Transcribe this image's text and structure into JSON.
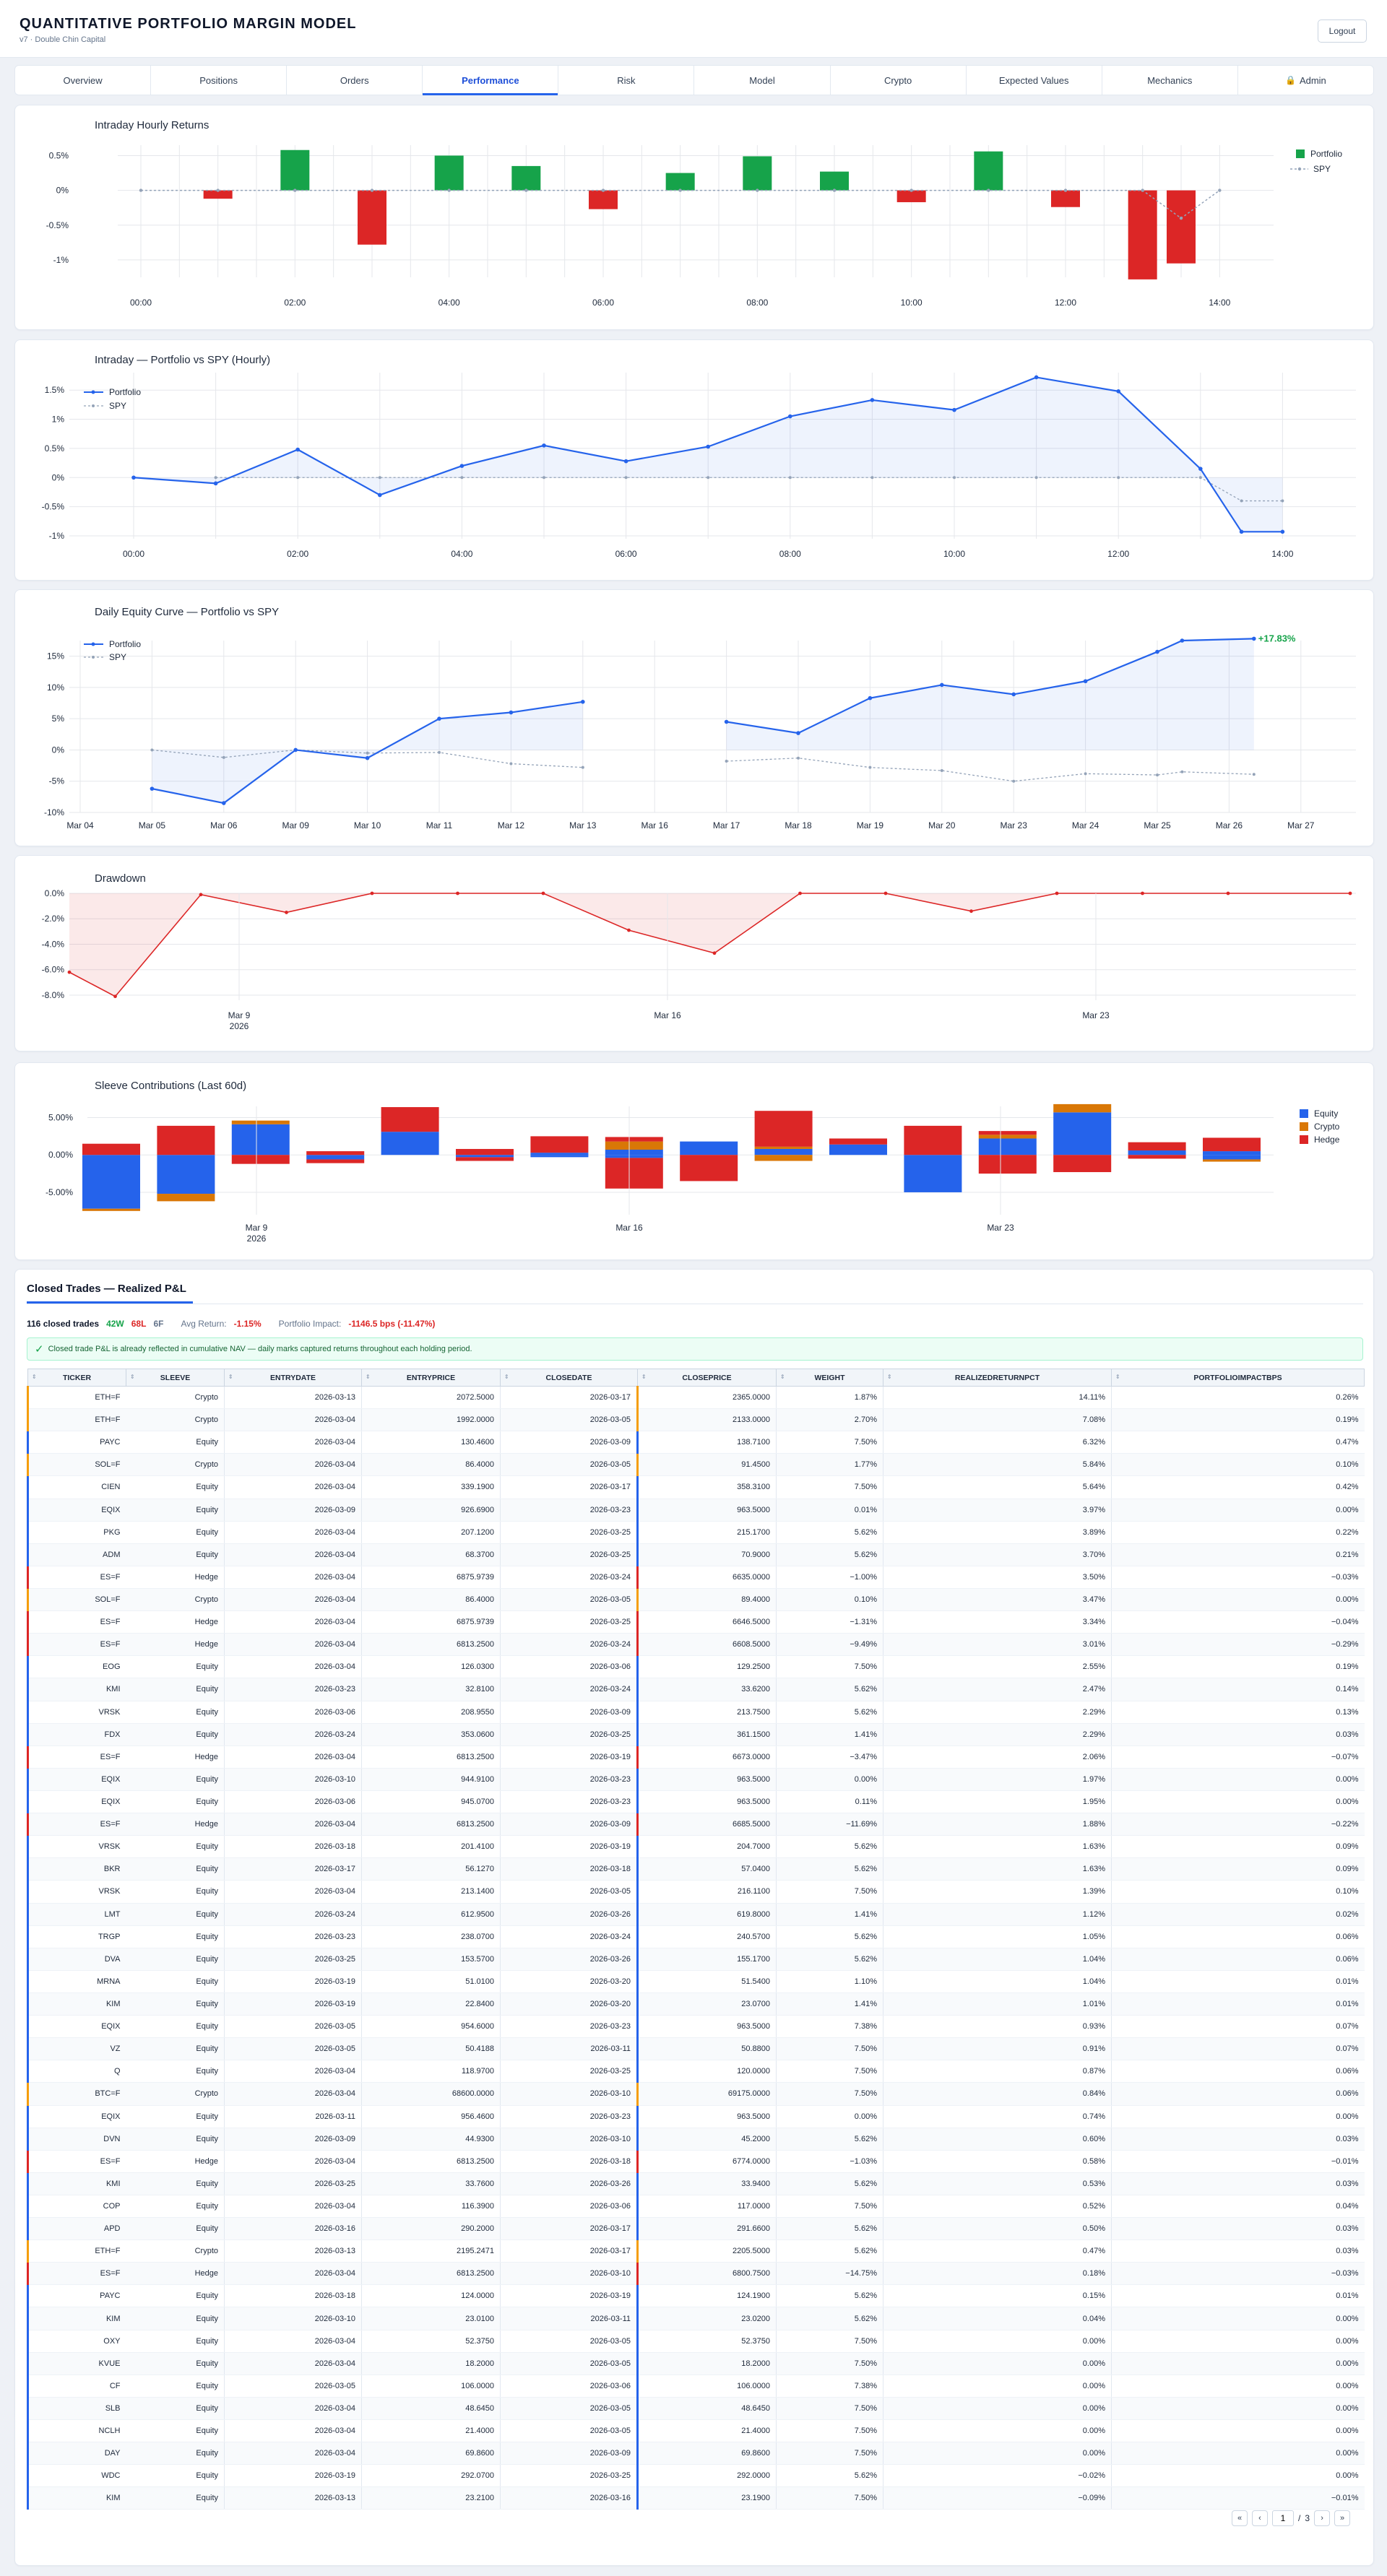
{
  "app": {
    "title": "QUANTITATIVE PORTFOLIO MARGIN MODEL",
    "subtitle": "v7 · Double Chin Capital",
    "logout": "Logout"
  },
  "tabs": [
    {
      "label": "Overview",
      "active": false
    },
    {
      "label": "Positions",
      "active": false
    },
    {
      "label": "Orders",
      "active": false
    },
    {
      "label": "Performance",
      "active": true
    },
    {
      "label": "Risk",
      "active": false
    },
    {
      "label": "Model",
      "active": false
    },
    {
      "label": "Crypto",
      "active": false
    },
    {
      "label": "Expected Values",
      "active": false
    },
    {
      "label": "Mechanics",
      "active": false
    },
    {
      "label": "Admin",
      "active": false,
      "icon": "lock-icon"
    }
  ],
  "colors": {
    "positive": "#16a34a",
    "negative": "#dc2626",
    "portfolio": "#2563eb",
    "spy": "#94a3b8",
    "equity": "#2563eb",
    "crypto": "#d97706",
    "hedge": "#dc2626"
  },
  "chart_data": [
    {
      "id": "intraday-returns",
      "type": "bar",
      "title": "Intraday Hourly Returns",
      "x_ticks": [
        "00:00",
        "02:00",
        "04:00",
        "06:00",
        "08:00",
        "10:00",
        "12:00",
        "14:00"
      ],
      "y_ticks": [
        "0.5%",
        "0%",
        "-0.5%",
        "-1%"
      ],
      "ylim": [
        -1.25,
        0.65
      ],
      "x": [
        0,
        0.5,
        1,
        1.5,
        2,
        2.5,
        3,
        3.5,
        4,
        4.5,
        5,
        5.5,
        6,
        6.5,
        7,
        7.5,
        8,
        8.5,
        9,
        9.5,
        10,
        10.5,
        11,
        11.5,
        12,
        12.5,
        13,
        13.5,
        14
      ],
      "series": [
        {
          "name": "Portfolio",
          "kind": "bar",
          "x": [
            1,
            2,
            3,
            4,
            5,
            6,
            7,
            8,
            9,
            10,
            11,
            12,
            13,
            13.5
          ],
          "values": [
            -0.12,
            0.58,
            -0.78,
            0.5,
            0.35,
            -0.27,
            0.25,
            0.49,
            0.27,
            -0.17,
            0.56,
            -0.24,
            -1.28,
            -1.05
          ]
        },
        {
          "name": "SPY",
          "kind": "line",
          "x": [
            0,
            1,
            2,
            3,
            4,
            5,
            6,
            7,
            8,
            9,
            10,
            11,
            12,
            13,
            13.5,
            14
          ],
          "values": [
            0,
            0,
            0,
            0,
            0,
            0,
            0,
            0,
            0,
            0,
            0,
            0,
            0,
            0,
            -0.4,
            0
          ]
        }
      ],
      "legend": "top-right"
    },
    {
      "id": "intraday-vs-spy",
      "type": "line",
      "title": "Intraday — Portfolio vs SPY (Hourly)",
      "x_ticks": [
        "00:00",
        "02:00",
        "04:00",
        "06:00",
        "08:00",
        "10:00",
        "12:00",
        "14:00"
      ],
      "y_ticks": [
        "1.5%",
        "1%",
        "0.5%",
        "0%",
        "-0.5%",
        "-1%"
      ],
      "ylim": [
        -1.05,
        1.8
      ],
      "series": [
        {
          "name": "Portfolio",
          "x": [
            0,
            1,
            2,
            3,
            4,
            5,
            6,
            7,
            8,
            9,
            10,
            11,
            12,
            13,
            13.5,
            14
          ],
          "values": [
            0,
            -0.1,
            0.48,
            -0.3,
            0.2,
            0.55,
            0.28,
            0.53,
            1.05,
            1.33,
            1.16,
            1.72,
            1.48,
            0.15,
            -0.93,
            -0.93
          ]
        },
        {
          "name": "SPY",
          "x": [
            1,
            2,
            3,
            4,
            5,
            6,
            7,
            8,
            9,
            10,
            11,
            12,
            13,
            13.5,
            14
          ],
          "values": [
            0,
            0,
            0,
            0,
            0,
            0,
            0,
            0,
            0,
            0,
            0,
            0,
            0,
            -0.4,
            -0.4
          ]
        }
      ],
      "legend": "top-left"
    },
    {
      "id": "daily-equity",
      "type": "line",
      "title": "Daily Equity Curve — Portfolio vs SPY",
      "categories": [
        "Mar 04",
        "Mar 05",
        "Mar 06",
        "Mar 09",
        "Mar 10",
        "Mar 11",
        "Mar 12",
        "Mar 13",
        "Mar 16",
        "Mar 17",
        "Mar 18",
        "Mar 19",
        "Mar 20",
        "Mar 23",
        "Mar 24",
        "Mar 25",
        "Mar 26",
        "Mar 27"
      ],
      "y_ticks": [
        "15%",
        "10%",
        "5%",
        "0%",
        "-5%",
        "-10%"
      ],
      "ylim": [
        -10,
        17.5
      ],
      "series": [
        {
          "name": "Portfolio",
          "values": [
            null,
            -6.2,
            -8.5,
            0,
            -1.3,
            5,
            6,
            7.7,
            null,
            4.5,
            2.7,
            8.3,
            10.4,
            8.9,
            11,
            15.7,
            17.5,
            17.8
          ]
        },
        {
          "name": "SPY",
          "values": [
            null,
            0,
            -1.2,
            0,
            -0.5,
            -0.4,
            -2.2,
            -2.8,
            null,
            -1.8,
            -1.3,
            -2.8,
            -3.3,
            -5,
            -3.8,
            -4,
            -3.5,
            -3.9
          ]
        }
      ],
      "end_label": "+17.83%",
      "legend": "top-left"
    },
    {
      "id": "drawdown",
      "type": "area",
      "title": "Drawdown",
      "x_ticks": [
        {
          "label": "Mar 9",
          "sub": "2026"
        },
        {
          "label": "Mar 16",
          "sub": ""
        },
        {
          "label": "Mar 23",
          "sub": ""
        }
      ],
      "y_ticks": [
        "0.0%",
        "-2.0%",
        "-4.0%",
        "-6.0%",
        "-8.0%"
      ],
      "ylim": [
        -8.4,
        0
      ],
      "values": [
        -6.2,
        -8.1,
        -0.1,
        -1.5,
        0,
        0,
        0,
        -2.9,
        -4.7,
        0,
        0,
        -1.4,
        0,
        0,
        0,
        0
      ]
    },
    {
      "id": "sleeve-contributions",
      "type": "bar",
      "stacked": true,
      "title": "Sleeve Contributions (Last 60d)",
      "x_ticks": [
        {
          "label": "Mar 9",
          "sub": "2026"
        },
        {
          "label": "Mar 16",
          "sub": ""
        },
        {
          "label": "Mar 23",
          "sub": ""
        }
      ],
      "y_ticks": [
        "5.00%",
        "0.00%",
        "-5.00%"
      ],
      "ylim": [
        -8,
        6.5
      ],
      "legend": "top-right",
      "series": [
        {
          "name": "Equity",
          "pos": [
            0,
            0,
            4.1,
            0,
            3.1,
            0,
            0.3,
            0.7,
            1.8,
            0.8,
            1.4,
            0,
            2.2,
            5.7,
            0.6,
            0.5
          ],
          "neg": [
            -7.2,
            -5.2,
            0,
            -0.6,
            0,
            -0.3,
            -0.3,
            -0.4,
            0,
            0,
            0,
            -5,
            0,
            0,
            0,
            -0.6
          ]
        },
        {
          "name": "Crypto",
          "pos": [
            0,
            0,
            0.5,
            0,
            0,
            0,
            0,
            1.1,
            0,
            0.3,
            0,
            0,
            0.5,
            1.1,
            0,
            0
          ],
          "neg": [
            -0.3,
            -1,
            0,
            0,
            0,
            0,
            0,
            0,
            0,
            -0.8,
            0,
            0,
            0,
            0,
            0,
            -0.3
          ]
        },
        {
          "name": "Hedge",
          "pos": [
            1.5,
            3.9,
            0,
            0.5,
            3.3,
            0.8,
            2.2,
            0.6,
            0,
            4.8,
            0.8,
            3.9,
            0.5,
            0,
            1.1,
            1.8
          ],
          "neg": [
            0,
            0,
            -1.2,
            -0.5,
            0,
            -0.5,
            0,
            -4.1,
            -3.5,
            0,
            0,
            0,
            -2.5,
            -2.3,
            -0.5,
            0
          ]
        }
      ]
    }
  ],
  "trades": {
    "title": "Closed Trades — Realized P&L",
    "count": "116 closed trades",
    "wins": "42W",
    "losses": "68L",
    "flat": "6F",
    "avg_return_label": "Avg Return:",
    "avg_return": "-1.15%",
    "impact_label": "Portfolio Impact:",
    "impact": "-1146.5 bps (-11.47%)",
    "notice": "Closed trade P&L is already reflected in cumulative NAV — daily marks captured returns throughout each holding period.",
    "columns": [
      "TICKER",
      "SLEEVE",
      "ENTRYDATE",
      "ENTRYPRICE",
      "CLOSEDATE",
      "CLOSEPRICE",
      "WEIGHT",
      "REALIZEDRETURNPCT",
      "PORTFOLIOIMPACTBPS"
    ],
    "rows": [
      [
        "ETH=F",
        "Crypto",
        "2026-03-13",
        "2072.5000",
        "2026-03-17",
        "2365.0000",
        "1.87%",
        "14.11%",
        "0.26%"
      ],
      [
        "ETH=F",
        "Crypto",
        "2026-03-04",
        "1992.0000",
        "2026-03-05",
        "2133.0000",
        "2.70%",
        "7.08%",
        "0.19%"
      ],
      [
        "PAYC",
        "Equity",
        "2026-03-04",
        "130.4600",
        "2026-03-09",
        "138.7100",
        "7.50%",
        "6.32%",
        "0.47%"
      ],
      [
        "SOL=F",
        "Crypto",
        "2026-03-04",
        "86.4000",
        "2026-03-05",
        "91.4500",
        "1.77%",
        "5.84%",
        "0.10%"
      ],
      [
        "CIEN",
        "Equity",
        "2026-03-04",
        "339.1900",
        "2026-03-17",
        "358.3100",
        "7.50%",
        "5.64%",
        "0.42%"
      ],
      [
        "EQIX",
        "Equity",
        "2026-03-09",
        "926.6900",
        "2026-03-23",
        "963.5000",
        "0.01%",
        "3.97%",
        "0.00%"
      ],
      [
        "PKG",
        "Equity",
        "2026-03-04",
        "207.1200",
        "2026-03-25",
        "215.1700",
        "5.62%",
        "3.89%",
        "0.22%"
      ],
      [
        "ADM",
        "Equity",
        "2026-03-04",
        "68.3700",
        "2026-03-25",
        "70.9000",
        "5.62%",
        "3.70%",
        "0.21%"
      ],
      [
        "ES=F",
        "Hedge",
        "2026-03-04",
        "6875.9739",
        "2026-03-24",
        "6635.0000",
        "−1.00%",
        "3.50%",
        "−0.03%"
      ],
      [
        "SOL=F",
        "Crypto",
        "2026-03-04",
        "86.4000",
        "2026-03-05",
        "89.4000",
        "0.10%",
        "3.47%",
        "0.00%"
      ],
      [
        "ES=F",
        "Hedge",
        "2026-03-04",
        "6875.9739",
        "2026-03-25",
        "6646.5000",
        "−1.31%",
        "3.34%",
        "−0.04%"
      ],
      [
        "ES=F",
        "Hedge",
        "2026-03-04",
        "6813.2500",
        "2026-03-24",
        "6608.5000",
        "−9.49%",
        "3.01%",
        "−0.29%"
      ],
      [
        "EOG",
        "Equity",
        "2026-03-04",
        "126.0300",
        "2026-03-06",
        "129.2500",
        "7.50%",
        "2.55%",
        "0.19%"
      ],
      [
        "KMI",
        "Equity",
        "2026-03-23",
        "32.8100",
        "2026-03-24",
        "33.6200",
        "5.62%",
        "2.47%",
        "0.14%"
      ],
      [
        "VRSK",
        "Equity",
        "2026-03-06",
        "208.9550",
        "2026-03-09",
        "213.7500",
        "5.62%",
        "2.29%",
        "0.13%"
      ],
      [
        "FDX",
        "Equity",
        "2026-03-24",
        "353.0600",
        "2026-03-25",
        "361.1500",
        "1.41%",
        "2.29%",
        "0.03%"
      ],
      [
        "ES=F",
        "Hedge",
        "2026-03-04",
        "6813.2500",
        "2026-03-19",
        "6673.0000",
        "−3.47%",
        "2.06%",
        "−0.07%"
      ],
      [
        "EQIX",
        "Equity",
        "2026-03-10",
        "944.9100",
        "2026-03-23",
        "963.5000",
        "0.00%",
        "1.97%",
        "0.00%"
      ],
      [
        "EQIX",
        "Equity",
        "2026-03-06",
        "945.0700",
        "2026-03-23",
        "963.5000",
        "0.11%",
        "1.95%",
        "0.00%"
      ],
      [
        "ES=F",
        "Hedge",
        "2026-03-04",
        "6813.2500",
        "2026-03-09",
        "6685.5000",
        "−11.69%",
        "1.88%",
        "−0.22%"
      ],
      [
        "VRSK",
        "Equity",
        "2026-03-18",
        "201.4100",
        "2026-03-19",
        "204.7000",
        "5.62%",
        "1.63%",
        "0.09%"
      ],
      [
        "BKR",
        "Equity",
        "2026-03-17",
        "56.1270",
        "2026-03-18",
        "57.0400",
        "5.62%",
        "1.63%",
        "0.09%"
      ],
      [
        "VRSK",
        "Equity",
        "2026-03-04",
        "213.1400",
        "2026-03-05",
        "216.1100",
        "7.50%",
        "1.39%",
        "0.10%"
      ],
      [
        "LMT",
        "Equity",
        "2026-03-24",
        "612.9500",
        "2026-03-26",
        "619.8000",
        "1.41%",
        "1.12%",
        "0.02%"
      ],
      [
        "TRGP",
        "Equity",
        "2026-03-23",
        "238.0700",
        "2026-03-24",
        "240.5700",
        "5.62%",
        "1.05%",
        "0.06%"
      ],
      [
        "DVA",
        "Equity",
        "2026-03-25",
        "153.5700",
        "2026-03-26",
        "155.1700",
        "5.62%",
        "1.04%",
        "0.06%"
      ],
      [
        "MRNA",
        "Equity",
        "2026-03-19",
        "51.0100",
        "2026-03-20",
        "51.5400",
        "1.10%",
        "1.04%",
        "0.01%"
      ],
      [
        "KIM",
        "Equity",
        "2026-03-19",
        "22.8400",
        "2026-03-20",
        "23.0700",
        "1.41%",
        "1.01%",
        "0.01%"
      ],
      [
        "EQIX",
        "Equity",
        "2026-03-05",
        "954.6000",
        "2026-03-23",
        "963.5000",
        "7.38%",
        "0.93%",
        "0.07%"
      ],
      [
        "VZ",
        "Equity",
        "2026-03-05",
        "50.4188",
        "2026-03-11",
        "50.8800",
        "7.50%",
        "0.91%",
        "0.07%"
      ],
      [
        "Q",
        "Equity",
        "2026-03-04",
        "118.9700",
        "2026-03-25",
        "120.0000",
        "7.50%",
        "0.87%",
        "0.06%"
      ],
      [
        "BTC=F",
        "Crypto",
        "2026-03-04",
        "68600.0000",
        "2026-03-10",
        "69175.0000",
        "7.50%",
        "0.84%",
        "0.06%"
      ],
      [
        "EQIX",
        "Equity",
        "2026-03-11",
        "956.4600",
        "2026-03-23",
        "963.5000",
        "0.00%",
        "0.74%",
        "0.00%"
      ],
      [
        "DVN",
        "Equity",
        "2026-03-09",
        "44.9300",
        "2026-03-10",
        "45.2000",
        "5.62%",
        "0.60%",
        "0.03%"
      ],
      [
        "ES=F",
        "Hedge",
        "2026-03-04",
        "6813.2500",
        "2026-03-18",
        "6774.0000",
        "−1.03%",
        "0.58%",
        "−0.01%"
      ],
      [
        "KMI",
        "Equity",
        "2026-03-25",
        "33.7600",
        "2026-03-26",
        "33.9400",
        "5.62%",
        "0.53%",
        "0.03%"
      ],
      [
        "COP",
        "Equity",
        "2026-03-04",
        "116.3900",
        "2026-03-06",
        "117.0000",
        "7.50%",
        "0.52%",
        "0.04%"
      ],
      [
        "APD",
        "Equity",
        "2026-03-16",
        "290.2000",
        "2026-03-17",
        "291.6600",
        "5.62%",
        "0.50%",
        "0.03%"
      ],
      [
        "ETH=F",
        "Crypto",
        "2026-03-13",
        "2195.2471",
        "2026-03-17",
        "2205.5000",
        "5.62%",
        "0.47%",
        "0.03%"
      ],
      [
        "ES=F",
        "Hedge",
        "2026-03-04",
        "6813.2500",
        "2026-03-10",
        "6800.7500",
        "−14.75%",
        "0.18%",
        "−0.03%"
      ],
      [
        "PAYC",
        "Equity",
        "2026-03-18",
        "124.0000",
        "2026-03-19",
        "124.1900",
        "5.62%",
        "0.15%",
        "0.01%"
      ],
      [
        "KIM",
        "Equity",
        "2026-03-10",
        "23.0100",
        "2026-03-11",
        "23.0200",
        "5.62%",
        "0.04%",
        "0.00%"
      ],
      [
        "OXY",
        "Equity",
        "2026-03-04",
        "52.3750",
        "2026-03-05",
        "52.3750",
        "7.50%",
        "0.00%",
        "0.00%"
      ],
      [
        "KVUE",
        "Equity",
        "2026-03-04",
        "18.2000",
        "2026-03-05",
        "18.2000",
        "7.50%",
        "0.00%",
        "0.00%"
      ],
      [
        "CF",
        "Equity",
        "2026-03-05",
        "106.0000",
        "2026-03-06",
        "106.0000",
        "7.38%",
        "0.00%",
        "0.00%"
      ],
      [
        "SLB",
        "Equity",
        "2026-03-04",
        "48.6450",
        "2026-03-05",
        "48.6450",
        "7.50%",
        "0.00%",
        "0.00%"
      ],
      [
        "NCLH",
        "Equity",
        "2026-03-04",
        "21.4000",
        "2026-03-05",
        "21.4000",
        "7.50%",
        "0.00%",
        "0.00%"
      ],
      [
        "DAY",
        "Equity",
        "2026-03-04",
        "69.8600",
        "2026-03-09",
        "69.8600",
        "7.50%",
        "0.00%",
        "0.00%"
      ],
      [
        "WDC",
        "Equity",
        "2026-03-19",
        "292.0700",
        "2026-03-25",
        "292.0000",
        "5.62%",
        "−0.02%",
        "0.00%"
      ],
      [
        "KIM",
        "Equity",
        "2026-03-13",
        "23.2100",
        "2026-03-16",
        "23.1900",
        "7.50%",
        "−0.09%",
        "−0.01%"
      ]
    ],
    "pager": {
      "page": "1",
      "sep": "/",
      "total": "3"
    }
  }
}
